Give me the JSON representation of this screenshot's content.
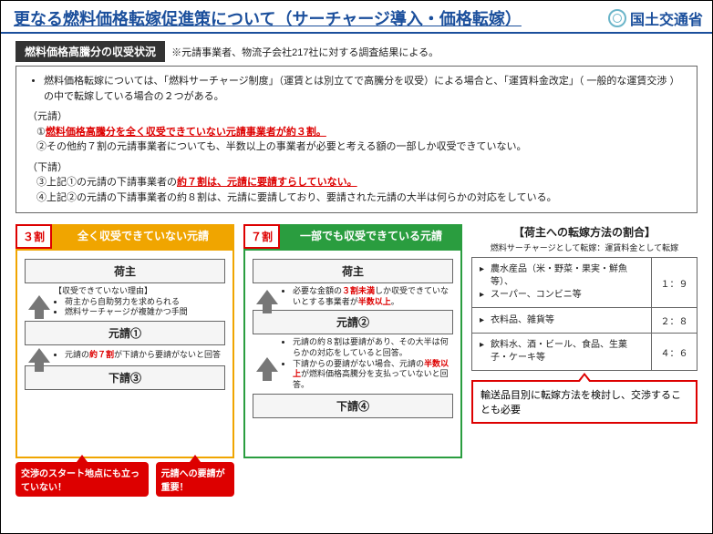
{
  "header": {
    "title": "更なる燃料価格転嫁促進策について（サーチャージ導入・価格転嫁）",
    "ministry": "国土交通省"
  },
  "section1": {
    "heading": "燃料価格高騰分の収受状況",
    "note": "※元請事業者、物流子会社217社に対する調査結果による。",
    "bullet": "燃料価格転嫁については、「燃料サーチャージ制度」（運賃とは別立てで高騰分を収受）による場合と、「運賃料金改定」（ 一般的な運賃交渉 ）の中で転嫁している場合の２つがある。",
    "groups": [
      {
        "label": "（元請）",
        "items": [
          {
            "num": "①",
            "text": "燃料価格高騰分を全く収受できていない元請事業者が約３割。",
            "red": true,
            "uline": true
          },
          {
            "num": "②",
            "text": "その他約７割の元請事業者についても、半数以上の事業者が必要と考える額の一部しか収受できていない。",
            "red": false
          }
        ]
      },
      {
        "label": "（下請）",
        "items": [
          {
            "num": "③",
            "pre": "上記①の元請の下請事業者の",
            "mid": "約７割は、元請に要請すらしていない。",
            "red": false,
            "midRed": true,
            "uline": true
          },
          {
            "num": "④",
            "text": "上記②の元請の下請事業者の約８割は、元請に要請しており、要請された元請の大半は何らかの対応をしている。",
            "red": false
          }
        ]
      }
    ]
  },
  "flowLeft": {
    "pct": "３割",
    "title": "全く収受できていない元請",
    "nodes": {
      "top": "荷主",
      "mid": "元請①",
      "bot": "下請③"
    },
    "note1": {
      "hdr": "【収受できていない理由】",
      "b1": "荷主から自助努力を求められる",
      "b2": "燃料サーチャージが複雑かつ手間"
    },
    "note2": {
      "pre": "元請の",
      "red": "約７割",
      "post": "が下請から要請がないと回答"
    },
    "callout1": "交渉のスタート地点にも立っていない！",
    "callout2": "元請への要請が重要！"
  },
  "flowRight": {
    "pct": "７割",
    "title": "一部でも収受できている元請",
    "nodes": {
      "top": "荷主",
      "mid": "元請②",
      "bot": "下請④"
    },
    "note1": {
      "pre": "必要な金額の",
      "r1": "３割未満",
      "m1": "しか収受できていないとする事業者が",
      "r2": "半数以上",
      "post": "。"
    },
    "note2": {
      "l1": "元請の約８割は要請があり、その大半は何らかの対応をしていると回答。",
      "l2pre": "下請からの要請がない場合、元請の",
      "l2r": "半数以上",
      "l2post": "が燃料価格高騰分を支払っていないと回答。"
    }
  },
  "rightPanel": {
    "title": "【荷主への転嫁方法の割合】",
    "subtitle": "燃料サーチャージとして転嫁：運賃料金として転嫁",
    "rows": [
      {
        "items": [
          "農水産品（米・野菜・果実・鮮魚等）、",
          "スーパー、コンビニ等"
        ],
        "ratio": "１：９"
      },
      {
        "items": [
          "衣料品、雑貨等"
        ],
        "ratio": "２：８"
      },
      {
        "items": [
          "飲料水、酒・ビール、食品、生菓子・ケーキ等"
        ],
        "ratio": "４：６"
      }
    ],
    "bottomCallout": "輸送品目別に転嫁方法を検討し、交渉することも必要"
  },
  "colors": {
    "blue": "#1b4f9c",
    "red": "#d00",
    "yellow": "#f0a500",
    "green": "#2a9d3f",
    "gray": "#777"
  }
}
